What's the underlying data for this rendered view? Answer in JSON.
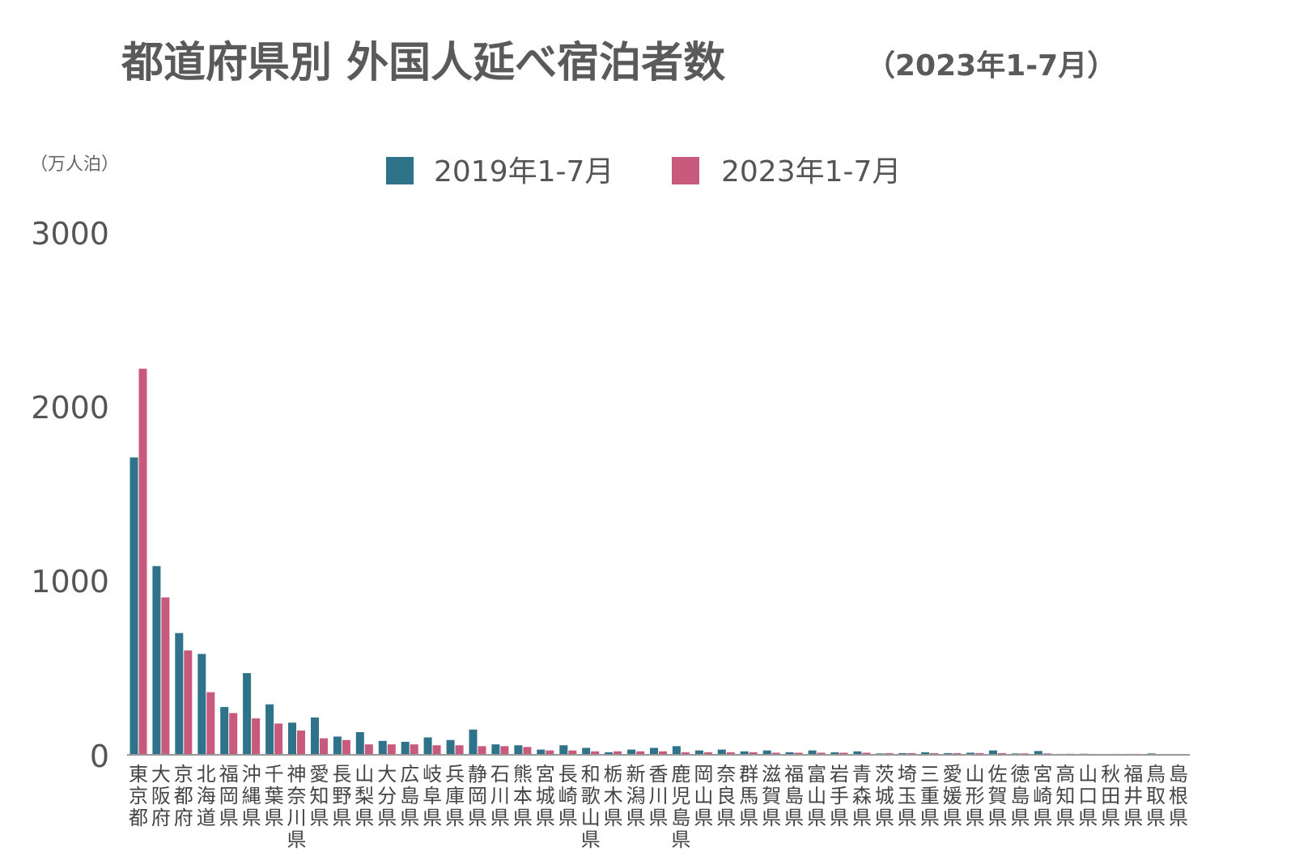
{
  "chart_data": {
    "type": "bar",
    "title": "都道府県別 外国人延べ宿泊者数",
    "subtitle": "（2023年1-7月）",
    "ylabel": "（万人泊）",
    "ylim": [
      0,
      3000
    ],
    "yticks": [
      "0",
      "1000",
      "2000",
      "3000"
    ],
    "grid": false,
    "legend_position": "top-center",
    "categories": [
      "東京都",
      "大阪府",
      "京都府",
      "北海道",
      "福岡県",
      "沖縄県",
      "千葉県",
      "神奈川県",
      "愛知県",
      "長野県",
      "山梨県",
      "大分県",
      "広島県",
      "岐阜県",
      "兵庫県",
      "静岡県",
      "石川県",
      "熊本県",
      "宮城県",
      "長崎県",
      "和歌山県",
      "栃木県",
      "新潟県",
      "香川県",
      "鹿児島県",
      "岡山県",
      "奈良県",
      "群馬県",
      "滋賀県",
      "福島県",
      "富山県",
      "岩手県",
      "青森県",
      "茨城県",
      "埼玉県",
      "三重県",
      "愛媛県",
      "山形県",
      "佐賀県",
      "徳島県",
      "宮崎県",
      "高知県",
      "山口県",
      "秋田県",
      "福井県",
      "鳥取県",
      "島根県"
    ],
    "series": [
      {
        "name": "2019年1-7月",
        "color": "#2E7389",
        "values": [
          1710,
          1085,
          700,
          580,
          275,
          470,
          290,
          185,
          215,
          105,
          130,
          80,
          75,
          100,
          85,
          145,
          60,
          55,
          30,
          55,
          40,
          15,
          30,
          40,
          50,
          25,
          30,
          20,
          25,
          15,
          25,
          15,
          20,
          8,
          10,
          15,
          10,
          12,
          25,
          8,
          22,
          5,
          6,
          4,
          5,
          8,
          4
        ]
      },
      {
        "name": "2023年1-7月",
        "color": "#C85A7E",
        "values": [
          2220,
          905,
          600,
          360,
          240,
          210,
          180,
          140,
          95,
          85,
          60,
          60,
          60,
          55,
          55,
          50,
          50,
          45,
          25,
          25,
          20,
          20,
          20,
          20,
          15,
          15,
          15,
          15,
          12,
          12,
          12,
          12,
          12,
          10,
          10,
          10,
          10,
          10,
          10,
          8,
          8,
          6,
          5,
          5,
          5,
          4,
          4
        ]
      }
    ]
  }
}
